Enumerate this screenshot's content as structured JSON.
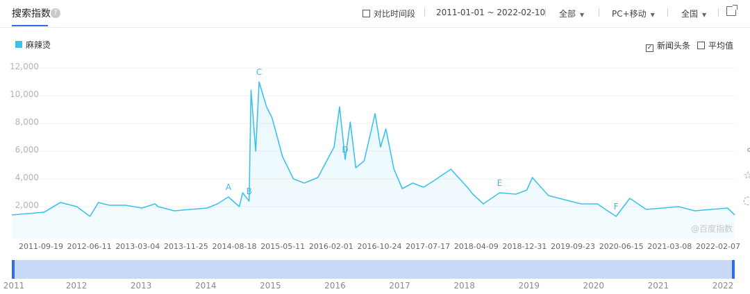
{
  "header": {
    "title": "搜索指数",
    "help_icon": "?",
    "compare_label": "对比时间段",
    "date_range": "2011-01-01 ~ 2022-02-10",
    "source_select": "全部",
    "device_select": "PC+移动",
    "region_select": "全国",
    "external_icon": "external-link-icon"
  },
  "options": {
    "news_label": "新闻头条",
    "news_checked": true,
    "average_label": "平均值",
    "average_checked": false
  },
  "watermark": "@百度指数",
  "colors": {
    "series": "#3fc1ea",
    "accent": "#2e6ee6",
    "brush": "#c8d8f7"
  },
  "chart_data": {
    "type": "area",
    "series": [
      {
        "name": "麻辣烫",
        "x": [
          "2011-01-01",
          "2011-04-01",
          "2011-07-01",
          "2011-10-01",
          "2012-01-01",
          "2012-03-15",
          "2012-05-01",
          "2012-07-01",
          "2012-10-01",
          "2013-01-01",
          "2013-03-15",
          "2013-04-01",
          "2013-07-01",
          "2013-10-01",
          "2014-01-01",
          "2014-03-01",
          "2014-05-01",
          "2014-07-01",
          "2014-07-20",
          "2014-08-25",
          "2014-09-05",
          "2014-10-01",
          "2014-10-20",
          "2014-12-01",
          "2015-01-01",
          "2015-03-01",
          "2015-05-01",
          "2015-07-01",
          "2015-09-15",
          "2015-12-15",
          "2016-01-15",
          "2016-02-15",
          "2016-03-15",
          "2016-04-15",
          "2016-06-01",
          "2016-08-01",
          "2016-09-01",
          "2016-10-01",
          "2016-11-15",
          "2017-01-01",
          "2017-03-01",
          "2017-05-01",
          "2017-07-01",
          "2017-10-01",
          "2018-01-01",
          "2018-02-01",
          "2018-04-01",
          "2018-07-01",
          "2018-10-01",
          "2018-12-01",
          "2019-01-01",
          "2019-04-01",
          "2019-07-01",
          "2019-10-01",
          "2020-01-01",
          "2020-02-15",
          "2020-04-15",
          "2020-07-01",
          "2020-10-01",
          "2021-01-01",
          "2021-04-01",
          "2021-07-01",
          "2021-10-01",
          "2022-01-01",
          "2022-02-10"
        ],
        "values": [
          1400,
          1500,
          1600,
          2300,
          2000,
          1300,
          2300,
          2100,
          2100,
          1900,
          2200,
          2000,
          1700,
          1800,
          1900,
          2200,
          2700,
          2000,
          3000,
          2400,
          10400,
          6000,
          11000,
          9200,
          8400,
          5600,
          4000,
          3700,
          4100,
          6300,
          9200,
          5400,
          8100,
          4800,
          5300,
          8700,
          6300,
          7600,
          4700,
          3300,
          3700,
          3400,
          3900,
          4700,
          3400,
          2900,
          2200,
          3000,
          2900,
          3200,
          4100,
          2800,
          2500,
          2200,
          2200,
          1800,
          1300,
          2600,
          1800,
          1900,
          2000,
          1700,
          1800,
          1900,
          1400
        ]
      }
    ],
    "annotations": [
      {
        "label": "A",
        "x": "2014-05-01"
      },
      {
        "label": "B",
        "x": "2014-08-25"
      },
      {
        "label": "C",
        "x": "2014-10-20"
      },
      {
        "label": "D",
        "x": "2016-02-15"
      },
      {
        "label": "E",
        "x": "2018-07-01"
      },
      {
        "label": "F",
        "x": "2020-04-15"
      }
    ],
    "yticks": [
      "2,000",
      "4,000",
      "6,000",
      "8,000",
      "10,000",
      "12,000"
    ],
    "ylim": [
      0,
      12000
    ],
    "xticks": [
      "2011-09-19",
      "2012-06-11",
      "2013-03-04",
      "2013-11-25",
      "2014-08-18",
      "2015-05-11",
      "2016-02-01",
      "2016-10-24",
      "2017-07-17",
      "2018-04-09",
      "2018-12-31",
      "2019-09-23",
      "2020-06-15",
      "2021-03-08",
      "2022-02-07"
    ],
    "xrange": [
      "2011-01-01",
      "2022-02-10"
    ],
    "brush_years": [
      "2011",
      "2012",
      "2013",
      "2014",
      "2015",
      "2016",
      "2017",
      "2018",
      "2019",
      "2020",
      "2021",
      "2022"
    ],
    "grid": true,
    "legend": "top-left"
  }
}
